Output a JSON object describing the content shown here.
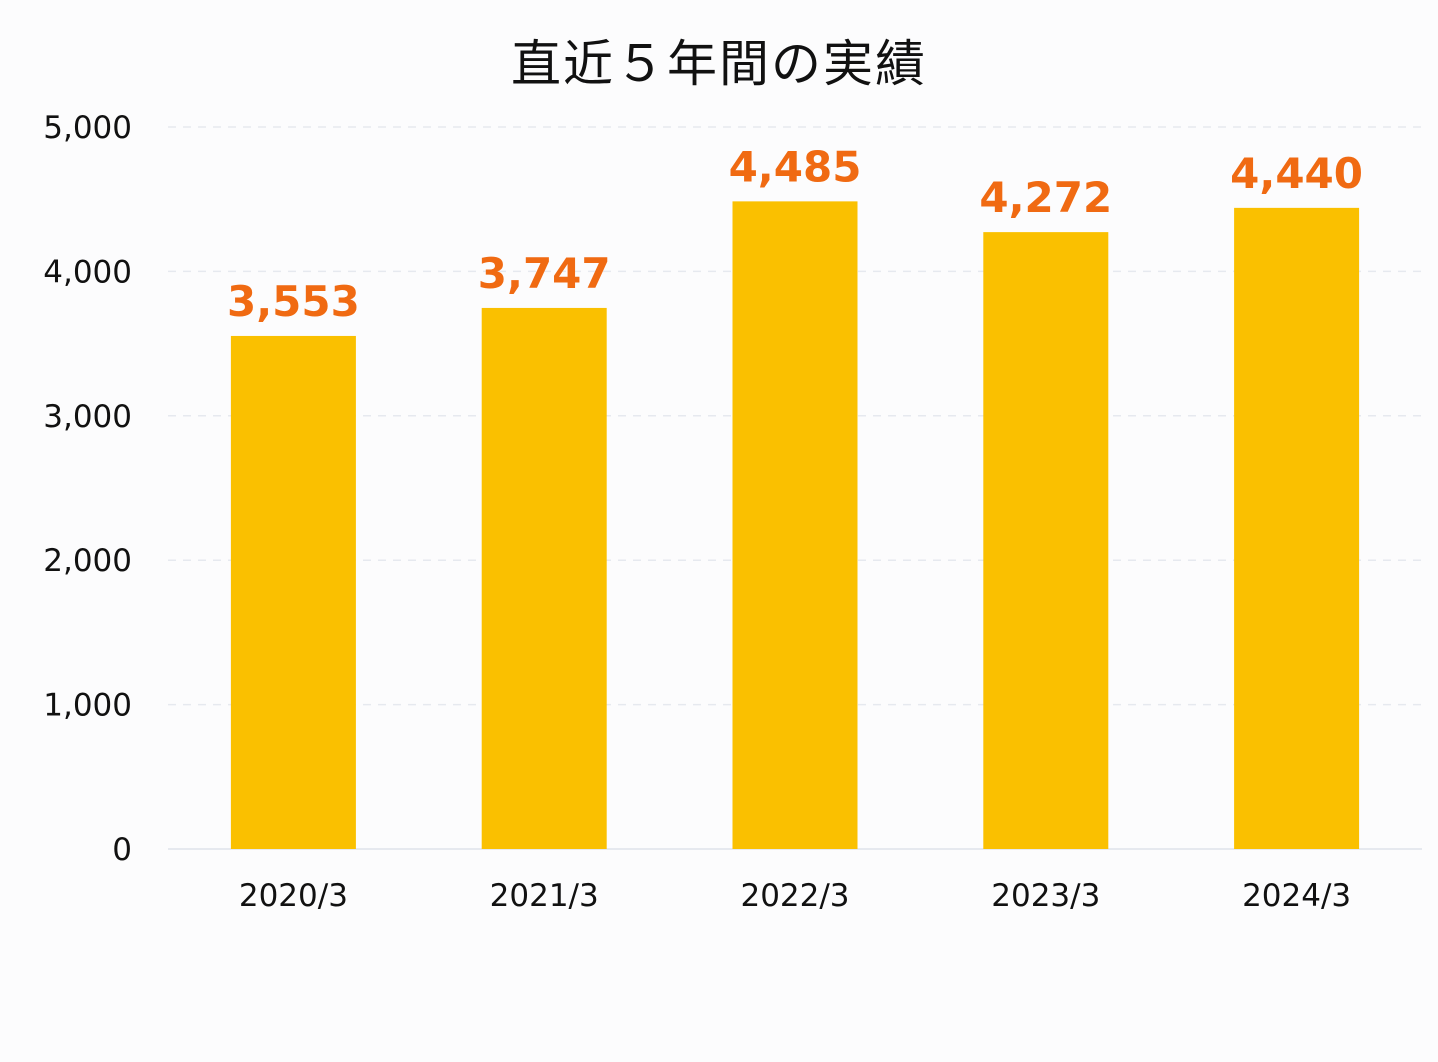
{
  "chart_data": {
    "type": "bar",
    "title": "直近５年間の実績",
    "xlabel": "",
    "ylabel": "",
    "categories": [
      "2020/3",
      "2021/3",
      "2022/3",
      "2023/3",
      "2024/3"
    ],
    "values": [
      3553,
      3747,
      4485,
      4272,
      4440
    ],
    "data_labels": [
      "3,553",
      "3,747",
      "4,485",
      "4,272",
      "4,440"
    ],
    "ylim": [
      0,
      5000
    ],
    "yticks": [
      0,
      1000,
      2000,
      3000,
      4000,
      5000
    ],
    "ytick_labels": [
      "0",
      "1,000",
      "2,000",
      "3,000",
      "4,000",
      "5,000"
    ],
    "grid": true,
    "legend": "none",
    "colors": {
      "bar": "#fac000",
      "data_label": "#f06a12",
      "grid": "#e6e9ef",
      "text": "#111111"
    }
  }
}
